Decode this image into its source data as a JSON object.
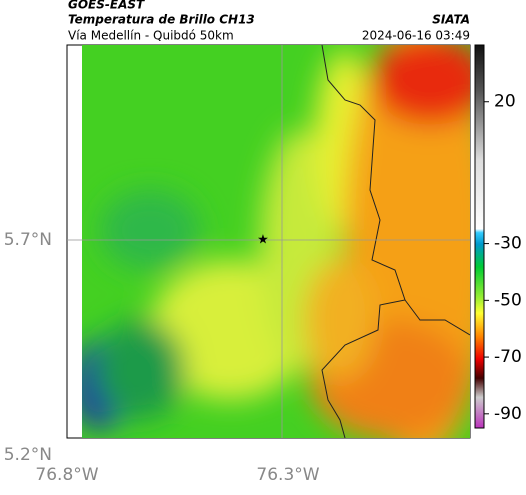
{
  "header": {
    "title": "GOES-EAST",
    "subtitle": "Temperatura de Brillo CH13",
    "region": "Vía Medellín - Quibdó 50km",
    "source": "SIATA",
    "timestamp": "2024-06-16 03:49"
  },
  "map": {
    "lat_labels": [
      "5.7°N",
      "5.2°N"
    ],
    "lon_labels": [
      "76.8°W",
      "76.3°W"
    ]
  },
  "colorbar": {
    "lim": [
      -95,
      40
    ],
    "ticks": [
      20,
      -30,
      -50,
      -70,
      -90
    ]
  }
}
